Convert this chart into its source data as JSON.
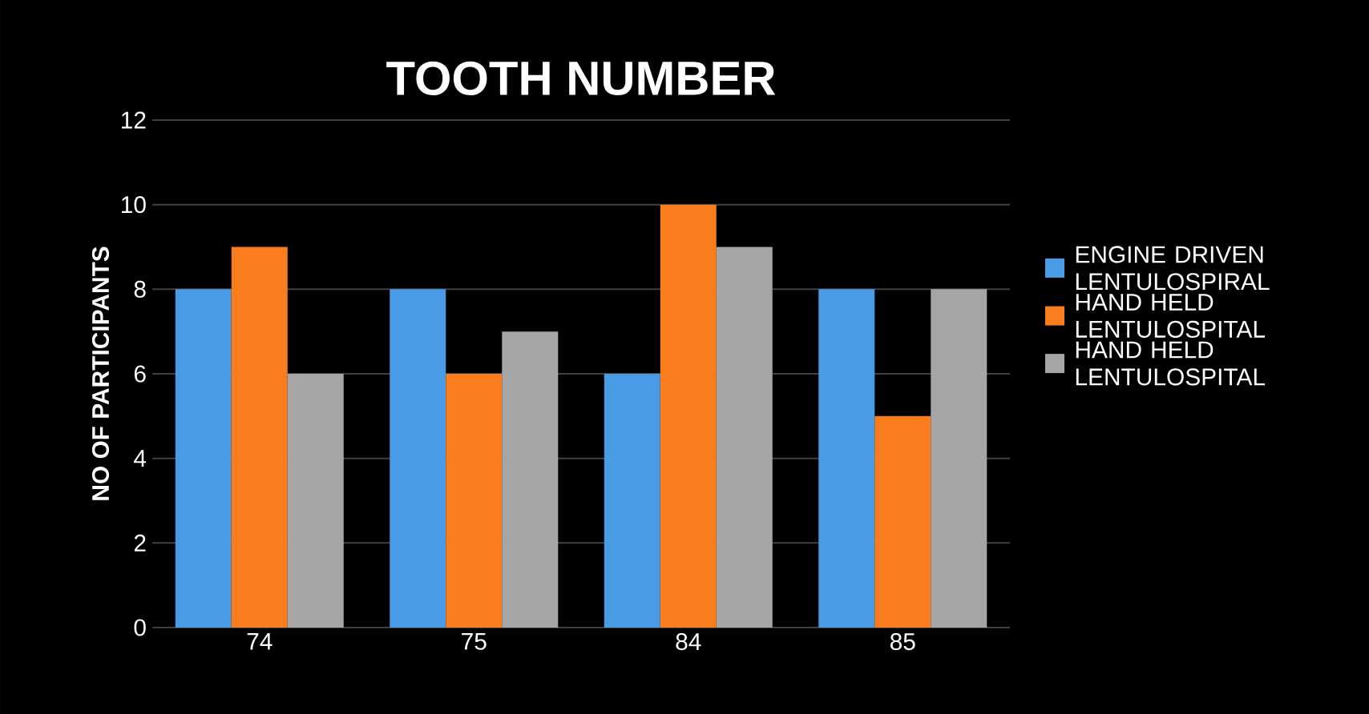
{
  "chart_data": {
    "type": "bar",
    "title": "TOOTH NUMBER",
    "ylabel": "NO OF PARTICIPANTS",
    "categories": [
      "74",
      "75",
      "84",
      "85"
    ],
    "series": [
      {
        "name": "ENGINE DRIVEN LENTULOSPIRAL",
        "color": "#4a9be6",
        "values": [
          8,
          8,
          6,
          8
        ]
      },
      {
        "name": "HAND HELD LENTULOSPITAL",
        "color": "#f97d1c",
        "values": [
          9,
          6,
          10,
          5
        ]
      },
      {
        "name": "HAND HELD LENTULOSPITAL",
        "color": "#a5a5a5",
        "values": [
          6,
          7,
          9,
          8
        ]
      }
    ],
    "ylim": [
      0,
      12
    ],
    "yticks": [
      0,
      2,
      4,
      6,
      8,
      10,
      12
    ],
    "grid": "y",
    "legend": "right"
  }
}
